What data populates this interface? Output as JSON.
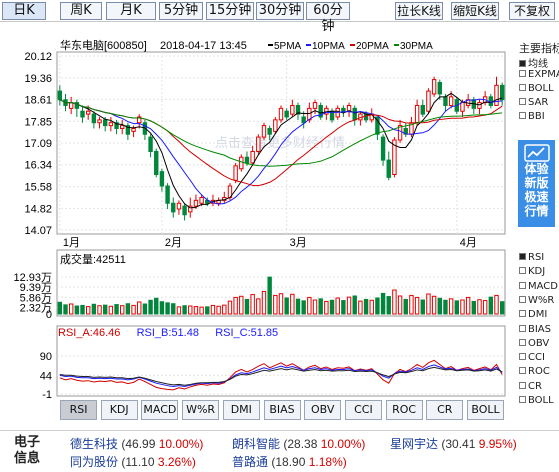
{
  "toolbar": {
    "periods": [
      {
        "label": "日K",
        "active": true
      },
      {
        "label": "周K",
        "active": false
      },
      {
        "label": "月K",
        "active": false
      },
      {
        "label": "5分钟",
        "active": false
      },
      {
        "label": "15分钟",
        "active": false
      },
      {
        "label": "30分钟",
        "active": false
      },
      {
        "label": "60分钟",
        "active": false
      }
    ],
    "stretch_label": "拉长K线",
    "shrink_label": "缩短K线",
    "adjust_label": "不复权"
  },
  "header": {
    "stock_name": "华东电脑[600850]",
    "datetime": "2018-04-17 13:45",
    "ma_labels": [
      {
        "label": "5PMA",
        "color": "#000000"
      },
      {
        "label": "10PMA",
        "color": "#1a1aff"
      },
      {
        "label": "20PMA",
        "color": "#d00000"
      },
      {
        "label": "30PMA",
        "color": "#008800"
      }
    ]
  },
  "watermark": "点击查看更多财经行情",
  "colors": {
    "up": "#e60000",
    "down": "#00873c",
    "bg": "#ffffff",
    "grid": "#dddddd"
  },
  "chart_data": [
    {
      "type": "candlestick",
      "y_ticks": [
        "20.12",
        "19.36",
        "18.61",
        "17.85",
        "17.09",
        "16.34",
        "15.58",
        "14.82",
        "14.07"
      ],
      "ylim": [
        14.07,
        20.12
      ],
      "x_labels": [
        "1月",
        "2月",
        "3月",
        "4月"
      ],
      "x_label_index": [
        0,
        18,
        40,
        70
      ],
      "candles": [
        [
          18.9,
          18.6,
          19.1,
          18.4
        ],
        [
          18.6,
          18.4,
          18.8,
          18.2
        ],
        [
          18.3,
          18.5,
          18.7,
          18.1
        ],
        [
          18.5,
          18.3,
          18.6,
          18.0
        ],
        [
          18.2,
          18.0,
          18.4,
          17.8
        ],
        [
          18.1,
          18.2,
          18.4,
          17.9
        ],
        [
          18.1,
          17.8,
          18.2,
          17.6
        ],
        [
          17.8,
          17.9,
          18.0,
          17.6
        ],
        [
          17.9,
          17.7,
          18.0,
          17.5
        ],
        [
          17.7,
          17.8,
          18.0,
          17.5
        ],
        [
          17.8,
          17.6,
          17.9,
          17.4
        ],
        [
          17.6,
          17.7,
          17.9,
          17.4
        ],
        [
          17.7,
          17.4,
          17.8,
          17.2
        ],
        [
          17.5,
          17.6,
          17.7,
          17.3
        ],
        [
          17.8,
          18.0,
          18.1,
          17.6
        ],
        [
          17.8,
          17.4,
          17.9,
          17.2
        ],
        [
          17.3,
          16.8,
          17.4,
          16.6
        ],
        [
          16.8,
          16.0,
          16.9,
          15.9
        ],
        [
          16.1,
          15.6,
          16.2,
          15.4
        ],
        [
          15.6,
          15.0,
          15.7,
          14.8
        ],
        [
          15.0,
          14.7,
          15.2,
          14.5
        ],
        [
          14.8,
          15.0,
          15.1,
          14.6
        ],
        [
          14.9,
          14.6,
          15.0,
          14.4
        ],
        [
          14.7,
          14.9,
          15.2,
          14.5
        ],
        [
          14.9,
          15.1,
          15.3,
          14.8
        ],
        [
          15.0,
          15.2,
          15.3,
          14.9
        ],
        [
          15.1,
          15.0,
          15.2,
          14.9
        ],
        [
          15.0,
          15.1,
          15.3,
          14.9
        ],
        [
          15.0,
          15.1,
          15.2,
          14.9
        ],
        [
          15.1,
          15.2,
          15.4,
          15.0
        ],
        [
          15.2,
          15.6,
          15.7,
          15.1
        ],
        [
          15.8,
          16.3,
          16.4,
          15.7
        ],
        [
          16.2,
          16.6,
          16.7,
          16.1
        ],
        [
          16.6,
          16.4,
          16.8,
          16.3
        ],
        [
          16.4,
          16.8,
          17.0,
          16.3
        ],
        [
          16.8,
          17.3,
          17.4,
          16.7
        ],
        [
          17.3,
          17.7,
          17.8,
          17.2
        ],
        [
          17.6,
          17.4,
          17.7,
          17.2
        ],
        [
          17.5,
          17.9,
          18.0,
          17.4
        ],
        [
          17.9,
          18.3,
          18.4,
          17.8
        ],
        [
          18.2,
          18.0,
          18.3,
          17.9
        ],
        [
          18.1,
          18.4,
          18.6,
          18.0
        ],
        [
          18.4,
          18.1,
          18.5,
          17.9
        ],
        [
          18.0,
          17.8,
          18.2,
          17.6
        ],
        [
          17.9,
          18.3,
          18.5,
          17.8
        ],
        [
          18.3,
          18.5,
          18.6,
          18.1
        ],
        [
          18.4,
          18.0,
          18.5,
          17.9
        ],
        [
          18.1,
          18.3,
          18.4,
          17.9
        ],
        [
          18.2,
          17.9,
          18.3,
          17.8
        ],
        [
          18.0,
          18.3,
          18.4,
          17.9
        ],
        [
          18.3,
          18.2,
          18.4,
          18.0
        ],
        [
          18.2,
          18.4,
          18.5,
          18.0
        ],
        [
          18.3,
          17.9,
          18.4,
          17.7
        ],
        [
          17.9,
          18.1,
          18.2,
          17.7
        ],
        [
          18.1,
          17.9,
          18.2,
          17.8
        ],
        [
          17.9,
          18.1,
          18.3,
          17.8
        ],
        [
          18.0,
          17.4,
          18.0,
          17.2
        ],
        [
          17.3,
          16.5,
          17.4,
          16.3
        ],
        [
          16.5,
          15.9,
          16.8,
          15.8
        ],
        [
          16.0,
          17.2,
          17.3,
          15.9
        ],
        [
          17.2,
          17.7,
          17.9,
          17.1
        ],
        [
          17.6,
          17.4,
          17.8,
          17.3
        ],
        [
          17.4,
          17.8,
          18.0,
          17.3
        ],
        [
          17.8,
          18.4,
          18.6,
          17.7
        ],
        [
          18.4,
          18.1,
          18.6,
          18.0
        ],
        [
          18.2,
          18.9,
          19.0,
          18.1
        ],
        [
          18.8,
          19.3,
          19.4,
          18.7
        ],
        [
          19.2,
          18.8,
          19.3,
          18.6
        ],
        [
          18.7,
          18.4,
          18.8,
          18.2
        ],
        [
          18.4,
          18.7,
          18.9,
          18.3
        ],
        [
          18.6,
          18.2,
          18.7,
          18.1
        ],
        [
          18.2,
          18.5,
          18.6,
          18.0
        ],
        [
          18.4,
          18.6,
          18.8,
          18.3
        ],
        [
          18.6,
          18.3,
          18.7,
          18.1
        ],
        [
          18.3,
          18.5,
          18.6,
          18.1
        ],
        [
          18.5,
          18.7,
          18.9,
          18.4
        ],
        [
          18.7,
          18.4,
          18.8,
          18.3
        ],
        [
          18.4,
          19.1,
          19.4,
          18.4
        ],
        [
          19.1,
          18.6,
          19.2,
          18.4
        ]
      ]
    },
    {
      "type": "bar",
      "title": "成交量:42511",
      "y_ticks": [
        "12.93万",
        "9.39万",
        "5.86万",
        "2.32万"
      ],
      "ylim": [
        0,
        14.0
      ],
      "values": [
        4.1,
        3.2,
        3.5,
        2.8,
        3.0,
        2.6,
        3.4,
        2.9,
        3.1,
        2.7,
        3.3,
        2.9,
        3.6,
        3.0,
        4.2,
        3.5,
        4.8,
        5.5,
        4.3,
        3.9,
        3.6,
        2.5,
        2.9,
        2.8,
        2.6,
        2.4,
        2.5,
        3.0,
        2.7,
        3.1,
        4.5,
        5.8,
        6.2,
        5.1,
        6.8,
        5.3,
        7.9,
        12.9,
        6.5,
        7.1,
        5.6,
        6.9,
        5.2,
        4.6,
        5.8,
        4.9,
        5.3,
        4.4,
        4.8,
        5.6,
        4.7,
        5.9,
        6.3,
        4.5,
        5.1,
        4.8,
        5.6,
        7.2,
        6.1,
        8.4,
        6.3,
        5.1,
        6.5,
        5.8,
        4.9,
        7.0,
        6.2,
        5.5,
        4.8,
        5.3,
        4.6,
        4.9,
        5.8,
        4.4,
        5.0,
        4.7,
        5.9,
        6.5,
        4.3
      ]
    },
    {
      "type": "line",
      "title_parts": [
        {
          "label": "RSI_A:46.46",
          "color": "#d00000"
        },
        {
          "label": "RSI_B:51.48",
          "color": "#1a1aff"
        },
        {
          "label": "RSI_C:51.85",
          "color": "#1a1aff"
        }
      ],
      "y_ticks": [
        "90",
        "44",
        "-1"
      ],
      "ylim": [
        -1,
        100
      ],
      "series": [
        {
          "color": "#d00000",
          "values": [
            38,
            33,
            36,
            32,
            30,
            31,
            28,
            30,
            29,
            31,
            27,
            28,
            24,
            27,
            35,
            29,
            22,
            15,
            12,
            10,
            9,
            14,
            11,
            16,
            20,
            22,
            20,
            23,
            22,
            26,
            38,
            52,
            58,
            52,
            58,
            66,
            72,
            62,
            68,
            74,
            66,
            72,
            64,
            56,
            64,
            68,
            60,
            64,
            58,
            62,
            61,
            64,
            55,
            59,
            56,
            60,
            47,
            33,
            25,
            48,
            58,
            53,
            60,
            70,
            63,
            74,
            80,
            70,
            60,
            65,
            56,
            60,
            63,
            56,
            60,
            64,
            57,
            70,
            46
          ]
        },
        {
          "color": "#1a1aff",
          "values": [
            44,
            41,
            42,
            39,
            38,
            38,
            36,
            37,
            36,
            37,
            35,
            35,
            33,
            35,
            39,
            35,
            30,
            25,
            22,
            19,
            17,
            19,
            17,
            20,
            23,
            25,
            24,
            26,
            25,
            28,
            35,
            45,
            50,
            48,
            52,
            57,
            62,
            58,
            62,
            66,
            62,
            65,
            61,
            56,
            60,
            62,
            58,
            60,
            56,
            58,
            58,
            60,
            55,
            57,
            55,
            57,
            50,
            42,
            37,
            48,
            54,
            52,
            56,
            62,
            58,
            65,
            69,
            64,
            59,
            61,
            56,
            58,
            59,
            55,
            57,
            60,
            56,
            63,
            51
          ]
        },
        {
          "color": "#222222",
          "values": [
            46,
            44,
            44,
            42,
            41,
            41,
            39,
            40,
            39,
            40,
            38,
            38,
            36,
            37,
            40,
            37,
            33,
            29,
            26,
            23,
            21,
            22,
            20,
            22,
            25,
            26,
            26,
            27,
            27,
            29,
            34,
            42,
            46,
            45,
            48,
            52,
            56,
            54,
            57,
            60,
            57,
            60,
            57,
            54,
            56,
            58,
            55,
            56,
            54,
            55,
            55,
            56,
            53,
            54,
            53,
            54,
            50,
            45,
            41,
            47,
            51,
            50,
            53,
            57,
            55,
            60,
            63,
            60,
            57,
            58,
            55,
            56,
            57,
            54,
            55,
            57,
            54,
            59,
            52
          ]
        }
      ]
    }
  ],
  "indicators": {
    "main_title": "主要指标",
    "main_items": [
      {
        "label": "均线",
        "on": true
      },
      {
        "label": "EXPMA",
        "on": false
      },
      {
        "label": "BOLL",
        "on": false
      },
      {
        "label": "SAR",
        "on": false
      },
      {
        "label": "BBI",
        "on": false
      }
    ],
    "sub_items": [
      {
        "label": "RSI",
        "on": true
      },
      {
        "label": "KDJ",
        "on": false
      },
      {
        "label": "MACD",
        "on": false
      },
      {
        "label": "W%R",
        "on": false
      },
      {
        "label": "DMI",
        "on": false
      },
      {
        "label": "BIAS",
        "on": false
      },
      {
        "label": "OBV",
        "on": false
      },
      {
        "label": "CCI",
        "on": false
      },
      {
        "label": "ROC",
        "on": false
      },
      {
        "label": "CR",
        "on": false
      },
      {
        "label": "BOLL",
        "on": false
      }
    ]
  },
  "promo": {
    "text": [
      "体验",
      "新版",
      "极速",
      "行情"
    ],
    "icon": "chart-trend-icon"
  },
  "tabs": [
    "RSI",
    "KDJ",
    "MACD",
    "W%R",
    "DMI",
    "BIAS",
    "OBV",
    "CCI",
    "ROC",
    "CR",
    "BOLL"
  ],
  "active_tab": "RSI",
  "news": {
    "label": "电子信息",
    "stocks": [
      {
        "name": "德生科技",
        "price": "(46.99",
        "change": "10.00%)"
      },
      {
        "name": "朗科智能",
        "price": "(28.38",
        "change": "10.00%)"
      },
      {
        "name": "星网宇达",
        "price": "(30.41",
        "change": "9.95%)"
      },
      {
        "name": "同为股份",
        "price": "(11.10",
        "change": "3.26%)"
      },
      {
        "name": "普路通",
        "price": "(18.90",
        "change": "1.18%)"
      }
    ]
  }
}
